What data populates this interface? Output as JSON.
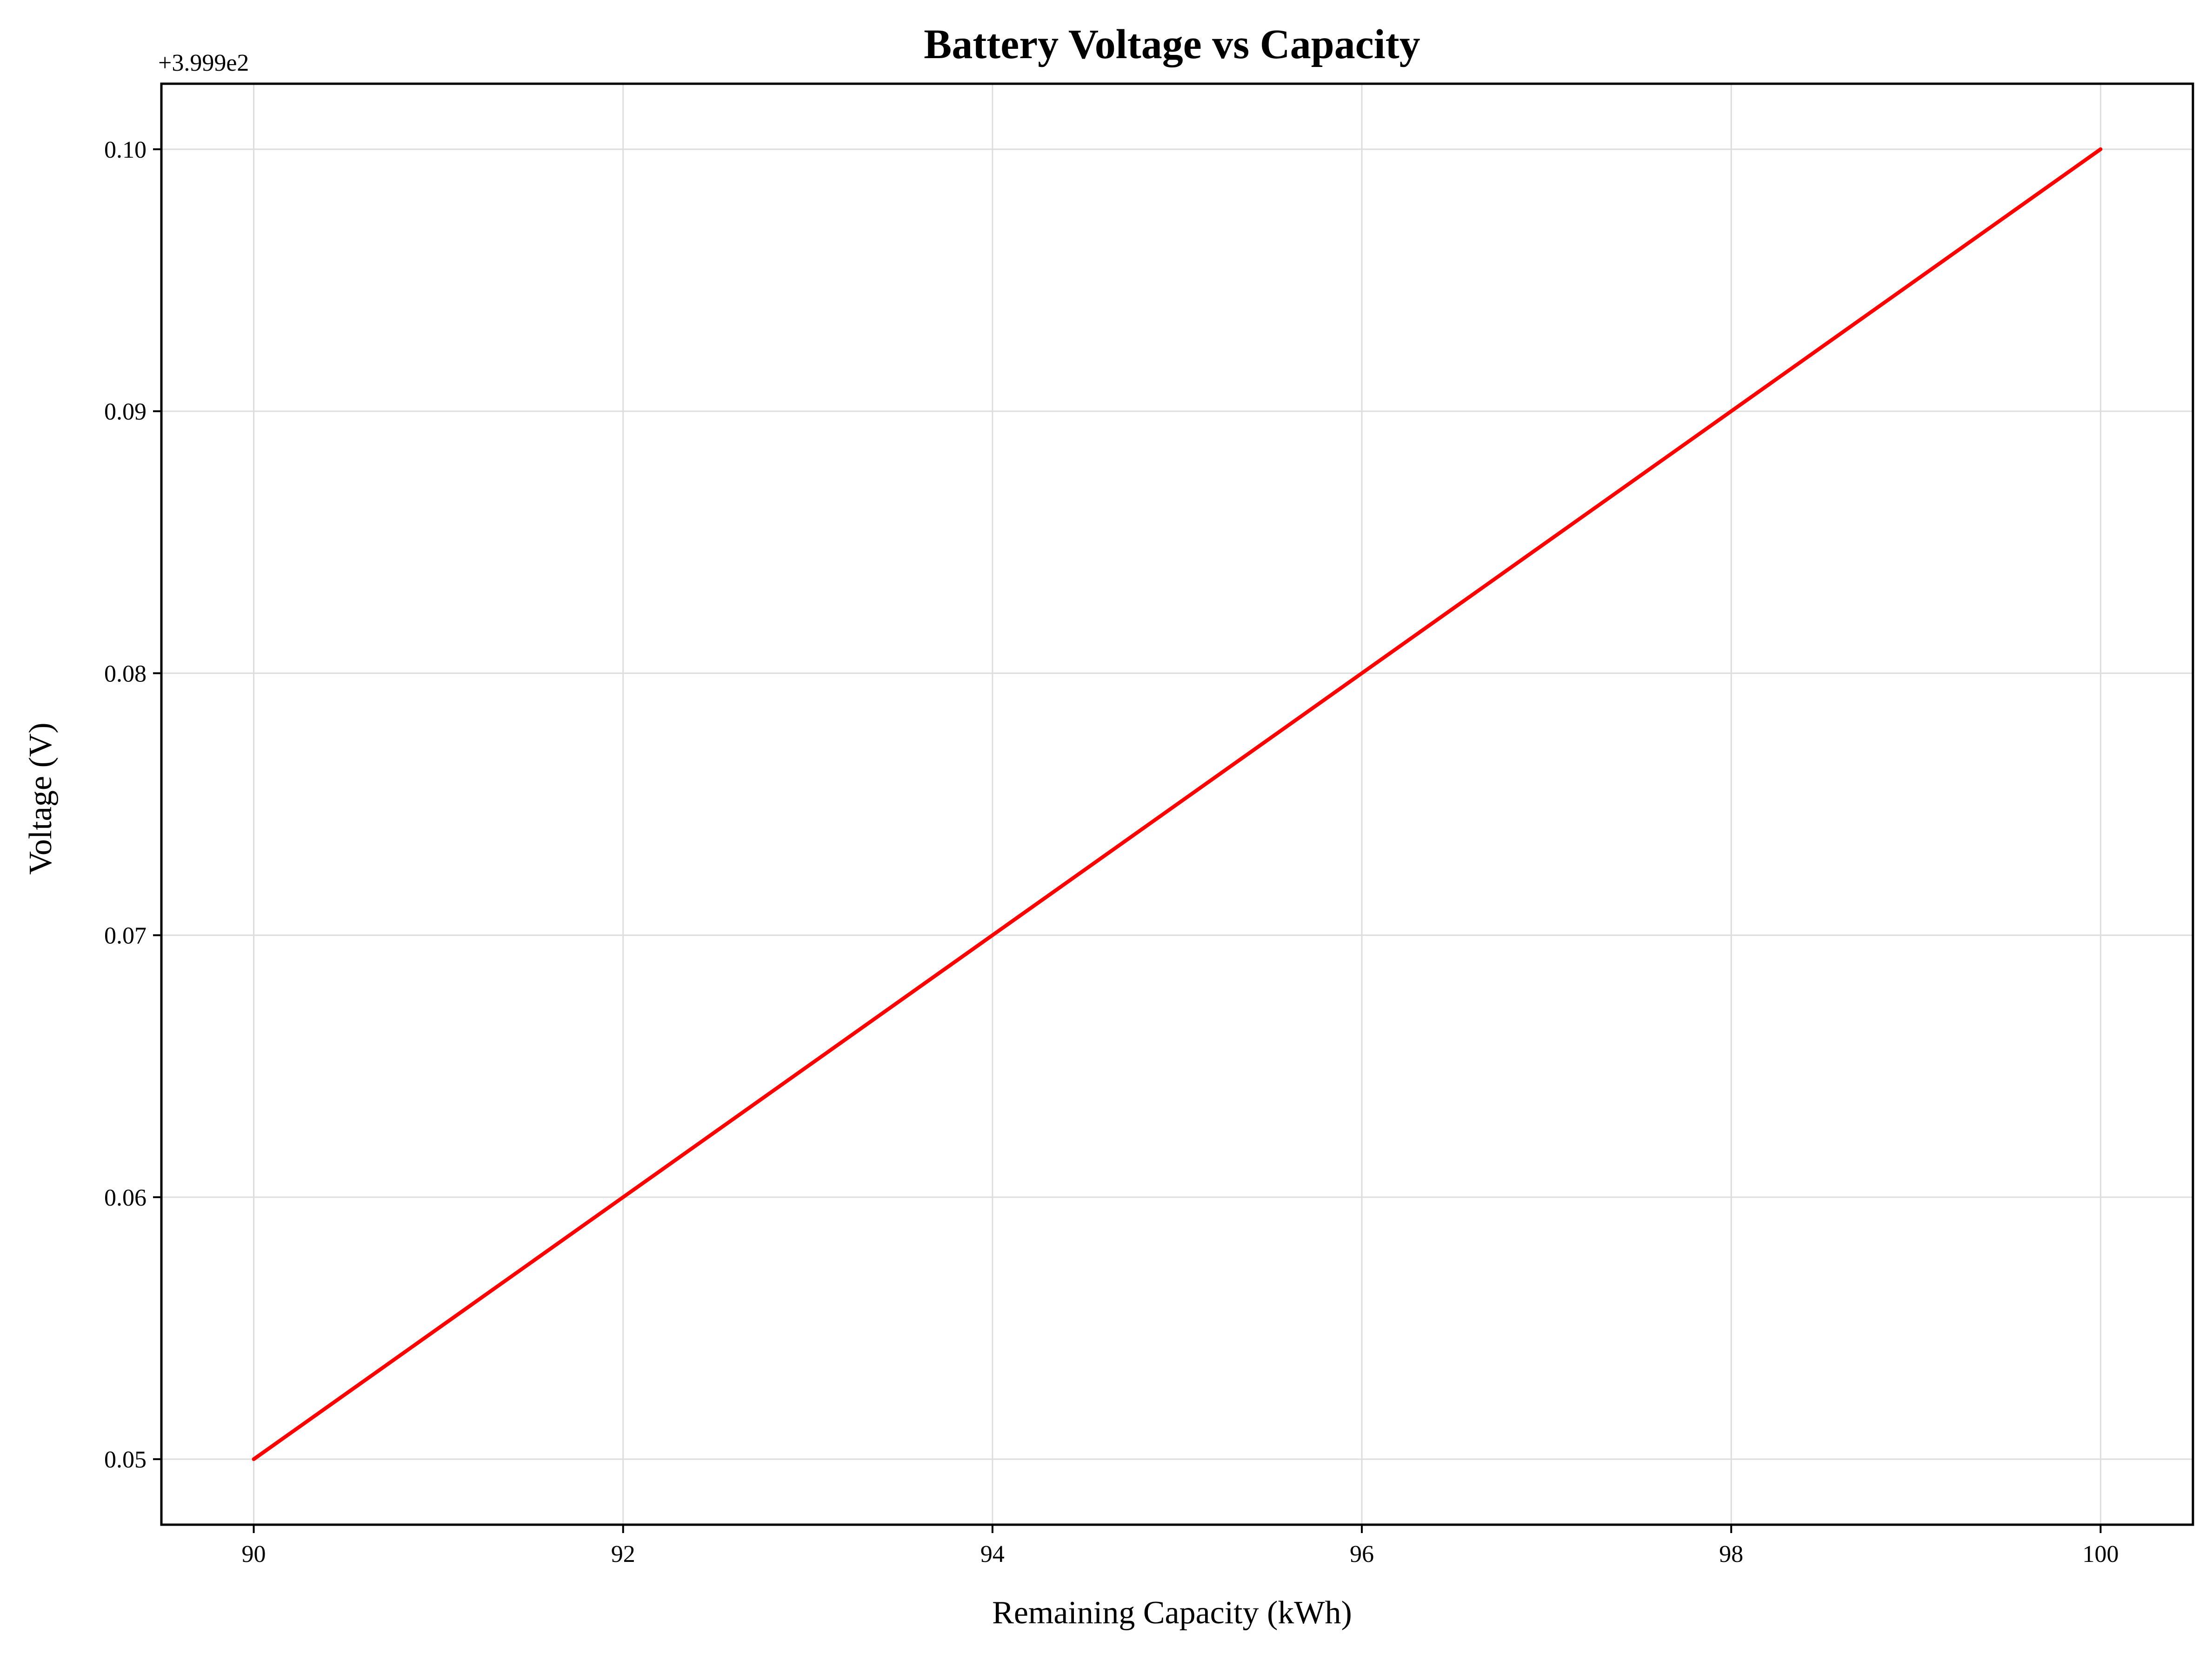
{
  "chart_data": {
    "type": "line",
    "title": "Battery Voltage vs Capacity",
    "xlabel": "Remaining Capacity (kWh)",
    "ylabel": "Voltage (V)",
    "y_offset_label": "+3.999e2",
    "xlim": [
      89.5,
      100.5
    ],
    "ylim": [
      0.0475,
      0.1025
    ],
    "x_ticks": [
      {
        "value": 90,
        "label": "90"
      },
      {
        "value": 92,
        "label": "92"
      },
      {
        "value": 94,
        "label": "94"
      },
      {
        "value": 96,
        "label": "96"
      },
      {
        "value": 98,
        "label": "98"
      },
      {
        "value": 100,
        "label": "100"
      }
    ],
    "y_ticks": [
      {
        "value": 0.05,
        "label": "0.05"
      },
      {
        "value": 0.06,
        "label": "0.06"
      },
      {
        "value": 0.07,
        "label": "0.07"
      },
      {
        "value": 0.08,
        "label": "0.08"
      },
      {
        "value": 0.09,
        "label": "0.09"
      },
      {
        "value": 0.1,
        "label": "0.10"
      }
    ],
    "grid": true,
    "series": [
      {
        "color": "#ff0000",
        "x": [
          90,
          100
        ],
        "y": [
          0.05,
          0.1
        ]
      }
    ]
  }
}
